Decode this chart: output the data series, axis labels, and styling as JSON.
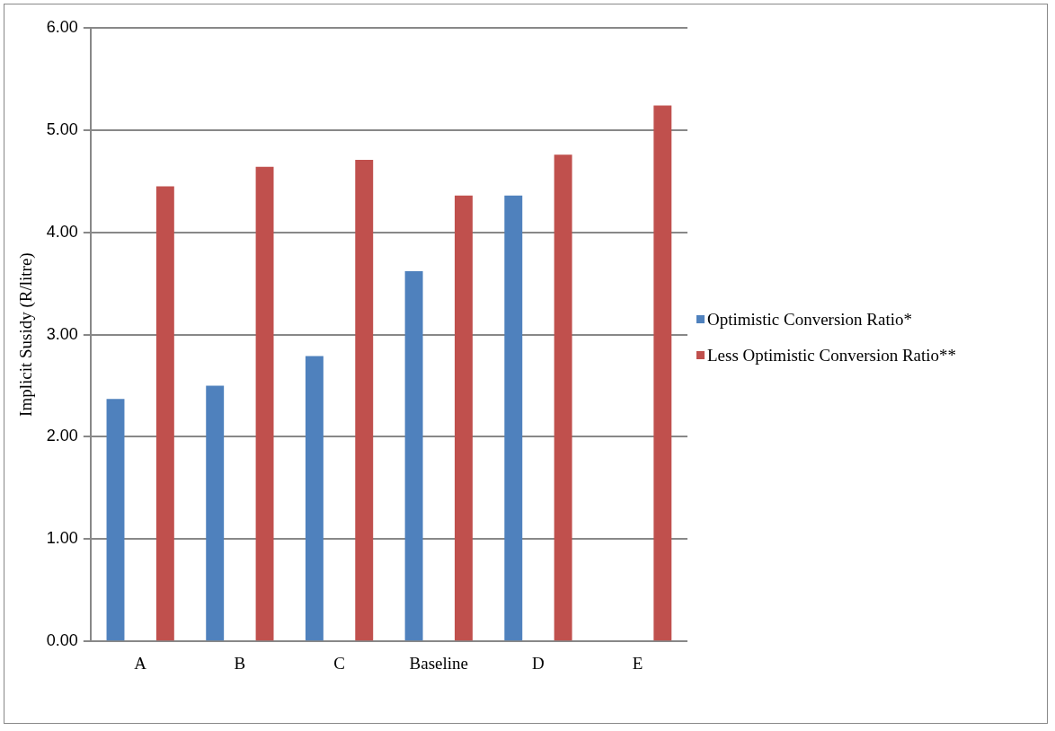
{
  "chart_data": {
    "type": "bar",
    "ylabel": "Implicit Susidy (R/litre)",
    "categories": [
      "A",
      "B",
      "C",
      "Baseline",
      "D",
      "E"
    ],
    "series": [
      {
        "name": "Optimistic Conversion Ratio*",
        "color": "#4f81bd",
        "values": [
          2.37,
          2.5,
          2.79,
          3.62,
          4.36,
          null
        ]
      },
      {
        "name": "Less Optimistic Conversion Ratio**",
        "color": "#c0504d",
        "values": [
          4.45,
          4.64,
          4.71,
          4.36,
          4.76,
          5.24
        ]
      }
    ],
    "ylim": [
      0,
      6
    ],
    "yticks": [
      {
        "value": 0,
        "label": "0.00"
      },
      {
        "value": 1,
        "label": "1.00"
      },
      {
        "value": 2,
        "label": "2.00"
      },
      {
        "value": 3,
        "label": "3.00"
      },
      {
        "value": 4,
        "label": "4.00"
      },
      {
        "value": 5,
        "label": "5.00"
      },
      {
        "value": 6,
        "label": "6.00"
      }
    ],
    "grid": "y",
    "legend": "right"
  }
}
